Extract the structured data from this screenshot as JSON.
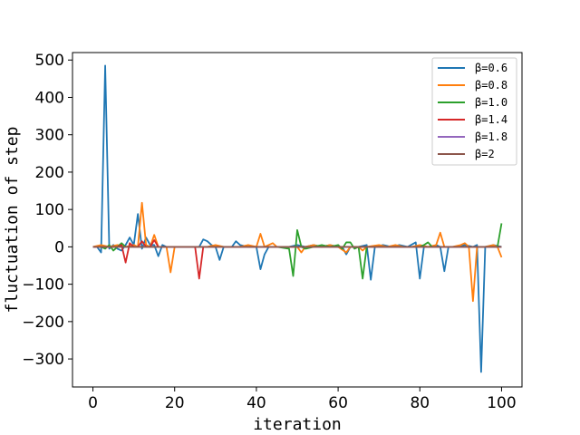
{
  "chart_data": {
    "type": "line",
    "title": "",
    "xlabel": "iteration",
    "ylabel": "fluctuation of step",
    "xlim": [
      -5,
      105
    ],
    "ylim": [
      -375,
      520
    ],
    "xticks": [
      0,
      20,
      40,
      60,
      80,
      100
    ],
    "yticks": [
      -300,
      -200,
      -100,
      0,
      100,
      200,
      300,
      400,
      500
    ],
    "xtick_labels": [
      "0",
      "20",
      "40",
      "60",
      "80",
      "100"
    ],
    "ytick_labels": [
      "−300",
      "−200",
      "−100",
      "0",
      "100",
      "200",
      "300",
      "400",
      "500"
    ],
    "grid": false,
    "legend": "top-right",
    "series": [
      {
        "name": "β=0.6",
        "color": "#1f77b4",
        "points": [
          [
            0,
            0
          ],
          [
            1,
            0
          ],
          [
            2,
            -15
          ],
          [
            3,
            485
          ],
          [
            4,
            -5
          ],
          [
            5,
            5
          ],
          [
            6,
            -5
          ],
          [
            7,
            -10
          ],
          [
            8,
            5
          ],
          [
            9,
            25
          ],
          [
            10,
            5
          ],
          [
            11,
            88
          ],
          [
            12,
            -5
          ],
          [
            13,
            25
          ],
          [
            14,
            5
          ],
          [
            15,
            5
          ],
          [
            16,
            -25
          ],
          [
            17,
            5
          ],
          [
            18,
            0
          ],
          [
            19,
            0
          ],
          [
            20,
            0
          ],
          [
            22,
            0
          ],
          [
            24,
            0
          ],
          [
            26,
            0
          ],
          [
            27,
            20
          ],
          [
            28,
            15
          ],
          [
            29,
            5
          ],
          [
            30,
            0
          ],
          [
            31,
            -35
          ],
          [
            32,
            0
          ],
          [
            34,
            0
          ],
          [
            35,
            15
          ],
          [
            36,
            5
          ],
          [
            38,
            0
          ],
          [
            40,
            0
          ],
          [
            41,
            -60
          ],
          [
            42,
            -20
          ],
          [
            43,
            0
          ],
          [
            45,
            0
          ],
          [
            48,
            0
          ],
          [
            50,
            5
          ],
          [
            52,
            0
          ],
          [
            54,
            5
          ],
          [
            56,
            0
          ],
          [
            58,
            5
          ],
          [
            60,
            0
          ],
          [
            61,
            0
          ],
          [
            62,
            -20
          ],
          [
            63,
            0
          ],
          [
            65,
            0
          ],
          [
            67,
            5
          ],
          [
            68,
            -88
          ],
          [
            69,
            0
          ],
          [
            71,
            5
          ],
          [
            73,
            0
          ],
          [
            75,
            5
          ],
          [
            77,
            0
          ],
          [
            79,
            12
          ],
          [
            80,
            -85
          ],
          [
            81,
            0
          ],
          [
            83,
            0
          ],
          [
            84,
            5
          ],
          [
            85,
            0
          ],
          [
            86,
            -65
          ],
          [
            87,
            0
          ],
          [
            89,
            0
          ],
          [
            91,
            5
          ],
          [
            93,
            0
          ],
          [
            94,
            5
          ],
          [
            95,
            -335
          ],
          [
            96,
            0
          ],
          [
            98,
            5
          ],
          [
            100,
            0
          ]
        ]
      },
      {
        "name": "β=0.8",
        "color": "#ff7f0e",
        "points": [
          [
            0,
            0
          ],
          [
            2,
            5
          ],
          [
            4,
            0
          ],
          [
            6,
            5
          ],
          [
            8,
            0
          ],
          [
            10,
            5
          ],
          [
            11,
            0
          ],
          [
            12,
            118
          ],
          [
            13,
            5
          ],
          [
            14,
            0
          ],
          [
            15,
            32
          ],
          [
            16,
            0
          ],
          [
            17,
            0
          ],
          [
            18,
            0
          ],
          [
            19,
            -68
          ],
          [
            20,
            0
          ],
          [
            22,
            0
          ],
          [
            25,
            0
          ],
          [
            28,
            0
          ],
          [
            30,
            5
          ],
          [
            32,
            0
          ],
          [
            34,
            0
          ],
          [
            36,
            0
          ],
          [
            38,
            5
          ],
          [
            40,
            0
          ],
          [
            41,
            35
          ],
          [
            42,
            0
          ],
          [
            44,
            10
          ],
          [
            45,
            0
          ],
          [
            48,
            0
          ],
          [
            50,
            0
          ],
          [
            51,
            -15
          ],
          [
            52,
            0
          ],
          [
            54,
            5
          ],
          [
            56,
            0
          ],
          [
            58,
            5
          ],
          [
            60,
            0
          ],
          [
            62,
            -15
          ],
          [
            63,
            0
          ],
          [
            65,
            0
          ],
          [
            66,
            -10
          ],
          [
            67,
            0
          ],
          [
            70,
            5
          ],
          [
            72,
            0
          ],
          [
            74,
            5
          ],
          [
            76,
            0
          ],
          [
            78,
            0
          ],
          [
            80,
            5
          ],
          [
            82,
            0
          ],
          [
            84,
            5
          ],
          [
            85,
            38
          ],
          [
            86,
            0
          ],
          [
            88,
            0
          ],
          [
            90,
            5
          ],
          [
            91,
            10
          ],
          [
            92,
            0
          ],
          [
            93,
            -145
          ],
          [
            94,
            0
          ],
          [
            96,
            0
          ],
          [
            98,
            5
          ],
          [
            99,
            0
          ],
          [
            100,
            -28
          ]
        ]
      },
      {
        "name": "β=1.0",
        "color": "#2ca02c",
        "points": [
          [
            0,
            0
          ],
          [
            2,
            0
          ],
          [
            3,
            -5
          ],
          [
            4,
            5
          ],
          [
            5,
            -10
          ],
          [
            6,
            0
          ],
          [
            7,
            10
          ],
          [
            8,
            0
          ],
          [
            10,
            0
          ],
          [
            15,
            0
          ],
          [
            20,
            0
          ],
          [
            25,
            0
          ],
          [
            30,
            0
          ],
          [
            35,
            0
          ],
          [
            40,
            0
          ],
          [
            45,
            0
          ],
          [
            48,
            -5
          ],
          [
            49,
            -78
          ],
          [
            50,
            45
          ],
          [
            51,
            0
          ],
          [
            52,
            -5
          ],
          [
            54,
            0
          ],
          [
            56,
            5
          ],
          [
            58,
            0
          ],
          [
            60,
            5
          ],
          [
            61,
            -5
          ],
          [
            62,
            12
          ],
          [
            63,
            12
          ],
          [
            64,
            -5
          ],
          [
            65,
            0
          ],
          [
            66,
            -85
          ],
          [
            67,
            0
          ],
          [
            70,
            0
          ],
          [
            75,
            0
          ],
          [
            80,
            0
          ],
          [
            81,
            5
          ],
          [
            82,
            12
          ],
          [
            83,
            0
          ],
          [
            84,
            0
          ],
          [
            88,
            0
          ],
          [
            92,
            0
          ],
          [
            96,
            0
          ],
          [
            99,
            0
          ],
          [
            100,
            63
          ]
        ]
      },
      {
        "name": "β=1.4",
        "color": "#d62728",
        "points": [
          [
            0,
            0
          ],
          [
            6,
            0
          ],
          [
            7,
            5
          ],
          [
            8,
            -42
          ],
          [
            9,
            10
          ],
          [
            10,
            0
          ],
          [
            11,
            0
          ],
          [
            12,
            15
          ],
          [
            13,
            0
          ],
          [
            14,
            0
          ],
          [
            15,
            18
          ],
          [
            16,
            0
          ],
          [
            20,
            0
          ],
          [
            24,
            0
          ],
          [
            25,
            0
          ],
          [
            26,
            -85
          ],
          [
            27,
            0
          ],
          [
            30,
            0
          ],
          [
            40,
            0
          ],
          [
            50,
            0
          ],
          [
            60,
            0
          ],
          [
            70,
            0
          ],
          [
            80,
            0
          ],
          [
            90,
            0
          ],
          [
            100,
            0
          ]
        ]
      },
      {
        "name": "β=1.8",
        "color": "#9467bd",
        "points": [
          [
            0,
            0
          ],
          [
            100,
            0
          ]
        ]
      },
      {
        "name": "β=2",
        "color": "#8c564b",
        "points": [
          [
            0,
            0
          ],
          [
            100,
            0
          ]
        ]
      }
    ]
  }
}
